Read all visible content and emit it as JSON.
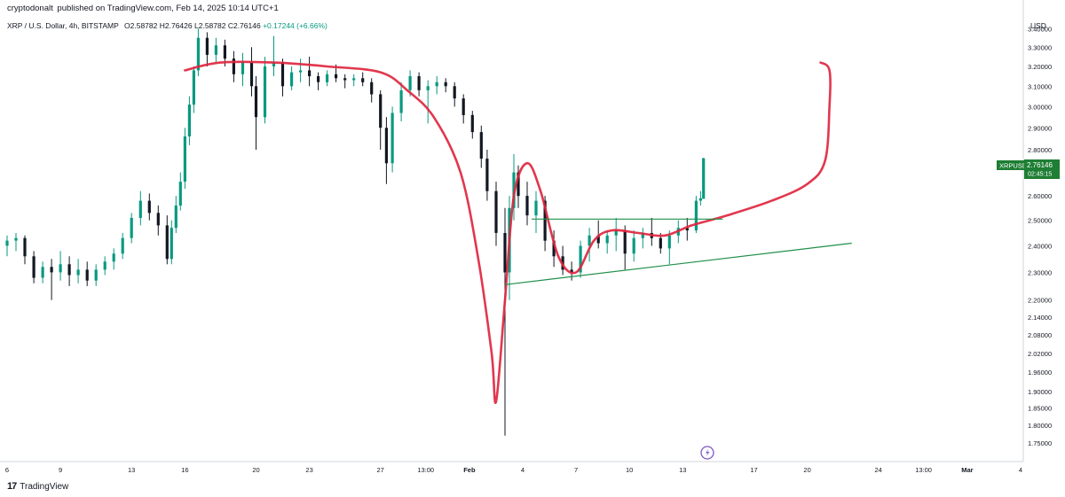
{
  "header": {
    "author": "cryptodonalt",
    "published_text": "published on TradingView.com, Feb 14, 2025 10:14 UTC+1"
  },
  "symbol": {
    "title": "XRP / U.S. Dollar, 4h, BITSTAMP",
    "open": "O2.58782",
    "high": "H2.76426",
    "low": "L2.58782",
    "close": "C2.76146",
    "change": "+0.17244 (+6.66%)"
  },
  "price_tag": {
    "ticker": "XRPUSD",
    "price": "2.76146",
    "countdown": "02:45:15"
  },
  "branding": {
    "logo_text": "TradingView",
    "logo_mark": "17"
  },
  "colors": {
    "up": "#089981",
    "down": "#131722",
    "drawing_red": "#e0263f",
    "drawing_green": "#1f8f4a",
    "price_tag_bg": "#1e7e34",
    "axis_text": "#131722",
    "border": "#d1d4dc"
  },
  "chart_data": {
    "type": "candlestick",
    "symbol": "XRPUSD",
    "interval": "4h",
    "exchange": "BITSTAMP",
    "y_axis": {
      "label": "USD",
      "scale": "log",
      "ticks": [
        "3.40000",
        "3.30000",
        "3.20000",
        "3.10000",
        "3.00000",
        "2.90000",
        "2.80000",
        "2.70000",
        "2.60000",
        "2.50000",
        "2.40000",
        "2.30000",
        "2.20000",
        "2.14000",
        "2.08000",
        "2.02000",
        "1.96000",
        "1.90000",
        "1.85000",
        "1.80000",
        "1.75000"
      ],
      "range": [
        1.72,
        3.45
      ],
      "position": "right"
    },
    "x_axis": {
      "ticks": [
        {
          "label": "6",
          "date": "2025-01-06T00:00"
        },
        {
          "label": "9",
          "date": "2025-01-09T00:00"
        },
        {
          "label": "13",
          "date": "2025-01-13T00:00"
        },
        {
          "label": "16",
          "date": "2025-01-16T00:00"
        },
        {
          "label": "20",
          "date": "2025-01-20T00:00"
        },
        {
          "label": "23",
          "date": "2025-01-23T00:00"
        },
        {
          "label": "27",
          "date": "2025-01-27T00:00"
        },
        {
          "label": "13:00",
          "date": "2025-01-29T13:00"
        },
        {
          "label": "Feb",
          "date": "2025-02-01T00:00"
        },
        {
          "label": "4",
          "date": "2025-02-04T00:00"
        },
        {
          "label": "7",
          "date": "2025-02-07T00:00"
        },
        {
          "label": "10",
          "date": "2025-02-10T00:00"
        },
        {
          "label": "13",
          "date": "2025-02-13T00:00"
        },
        {
          "label": "17",
          "date": "2025-02-17T00:00"
        },
        {
          "label": "20",
          "date": "2025-02-20T00:00"
        },
        {
          "label": "24",
          "date": "2025-02-24T00:00"
        },
        {
          "label": "13:00",
          "date": "2025-02-26T13:00"
        },
        {
          "label": "Mar",
          "date": "2025-03-01T00:00"
        },
        {
          "label": "4",
          "date": "2025-03-04T00:00"
        }
      ],
      "range": [
        "2025-01-06T00:00",
        "2025-03-04T00:00"
      ]
    },
    "candles": [
      {
        "t": "2025-01-06T00:00",
        "o": 2.4,
        "h": 2.44,
        "l": 2.36,
        "c": 2.42
      },
      {
        "t": "2025-01-06T12:00",
        "o": 2.42,
        "h": 2.45,
        "l": 2.38,
        "c": 2.43
      },
      {
        "t": "2025-01-07T00:00",
        "o": 2.43,
        "h": 2.44,
        "l": 2.33,
        "c": 2.36
      },
      {
        "t": "2025-01-07T12:00",
        "o": 2.36,
        "h": 2.38,
        "l": 2.26,
        "c": 2.28
      },
      {
        "t": "2025-01-08T00:00",
        "o": 2.28,
        "h": 2.34,
        "l": 2.26,
        "c": 2.32
      },
      {
        "t": "2025-01-08T12:00",
        "o": 2.32,
        "h": 2.35,
        "l": 2.2,
        "c": 2.3
      },
      {
        "t": "2025-01-09T00:00",
        "o": 2.3,
        "h": 2.38,
        "l": 2.27,
        "c": 2.33
      },
      {
        "t": "2025-01-09T12:00",
        "o": 2.33,
        "h": 2.36,
        "l": 2.25,
        "c": 2.29
      },
      {
        "t": "2025-01-10T00:00",
        "o": 2.29,
        "h": 2.35,
        "l": 2.26,
        "c": 2.31
      },
      {
        "t": "2025-01-10T12:00",
        "o": 2.31,
        "h": 2.34,
        "l": 2.25,
        "c": 2.27
      },
      {
        "t": "2025-01-11T00:00",
        "o": 2.27,
        "h": 2.33,
        "l": 2.25,
        "c": 2.31
      },
      {
        "t": "2025-01-11T12:00",
        "o": 2.31,
        "h": 2.36,
        "l": 2.29,
        "c": 2.34
      },
      {
        "t": "2025-01-12T00:00",
        "o": 2.34,
        "h": 2.39,
        "l": 2.31,
        "c": 2.37
      },
      {
        "t": "2025-01-12T12:00",
        "o": 2.37,
        "h": 2.45,
        "l": 2.35,
        "c": 2.43
      },
      {
        "t": "2025-01-13T00:00",
        "o": 2.43,
        "h": 2.53,
        "l": 2.41,
        "c": 2.51
      },
      {
        "t": "2025-01-13T12:00",
        "o": 2.51,
        "h": 2.62,
        "l": 2.48,
        "c": 2.58
      },
      {
        "t": "2025-01-14T00:00",
        "o": 2.58,
        "h": 2.61,
        "l": 2.5,
        "c": 2.53
      },
      {
        "t": "2025-01-14T12:00",
        "o": 2.53,
        "h": 2.56,
        "l": 2.44,
        "c": 2.48
      },
      {
        "t": "2025-01-15T00:00",
        "o": 2.48,
        "h": 2.52,
        "l": 2.33,
        "c": 2.35
      },
      {
        "t": "2025-01-15T06:00",
        "o": 2.35,
        "h": 2.5,
        "l": 2.33,
        "c": 2.47
      },
      {
        "t": "2025-01-15T12:00",
        "o": 2.47,
        "h": 2.6,
        "l": 2.45,
        "c": 2.56
      },
      {
        "t": "2025-01-15T18:00",
        "o": 2.56,
        "h": 2.7,
        "l": 2.54,
        "c": 2.66
      },
      {
        "t": "2025-01-16T00:00",
        "o": 2.66,
        "h": 2.9,
        "l": 2.63,
        "c": 2.86
      },
      {
        "t": "2025-01-16T06:00",
        "o": 2.86,
        "h": 3.05,
        "l": 2.82,
        "c": 3.01
      },
      {
        "t": "2025-01-16T12:00",
        "o": 3.01,
        "h": 3.2,
        "l": 2.97,
        "c": 3.18
      },
      {
        "t": "2025-01-16T18:00",
        "o": 3.18,
        "h": 3.4,
        "l": 3.15,
        "c": 3.35
      },
      {
        "t": "2025-01-17T06:00",
        "o": 3.35,
        "h": 3.38,
        "l": 3.2,
        "c": 3.26
      },
      {
        "t": "2025-01-17T18:00",
        "o": 3.26,
        "h": 3.35,
        "l": 3.22,
        "c": 3.31
      },
      {
        "t": "2025-01-18T06:00",
        "o": 3.31,
        "h": 3.34,
        "l": 3.2,
        "c": 3.24
      },
      {
        "t": "2025-01-18T18:00",
        "o": 3.24,
        "h": 3.28,
        "l": 3.12,
        "c": 3.16
      },
      {
        "t": "2025-01-19T06:00",
        "o": 3.16,
        "h": 3.27,
        "l": 3.1,
        "c": 3.22
      },
      {
        "t": "2025-01-19T18:00",
        "o": 3.22,
        "h": 3.3,
        "l": 3.05,
        "c": 3.1
      },
      {
        "t": "2025-01-20T00:00",
        "o": 3.1,
        "h": 3.15,
        "l": 2.8,
        "c": 2.95
      },
      {
        "t": "2025-01-20T12:00",
        "o": 2.95,
        "h": 3.25,
        "l": 2.92,
        "c": 3.2
      },
      {
        "t": "2025-01-21T00:00",
        "o": 3.2,
        "h": 3.36,
        "l": 3.15,
        "c": 3.22
      },
      {
        "t": "2025-01-21T12:00",
        "o": 3.22,
        "h": 3.24,
        "l": 3.05,
        "c": 3.1
      },
      {
        "t": "2025-01-22T00:00",
        "o": 3.1,
        "h": 3.2,
        "l": 3.08,
        "c": 3.17
      },
      {
        "t": "2025-01-22T12:00",
        "o": 3.17,
        "h": 3.24,
        "l": 3.12,
        "c": 3.18
      },
      {
        "t": "2025-01-23T00:00",
        "o": 3.18,
        "h": 3.25,
        "l": 3.1,
        "c": 3.15
      },
      {
        "t": "2025-01-23T12:00",
        "o": 3.15,
        "h": 3.17,
        "l": 3.08,
        "c": 3.12
      },
      {
        "t": "2025-01-24T00:00",
        "o": 3.12,
        "h": 3.18,
        "l": 3.1,
        "c": 3.16
      },
      {
        "t": "2025-01-24T12:00",
        "o": 3.16,
        "h": 3.21,
        "l": 3.12,
        "c": 3.14
      },
      {
        "t": "2025-01-25T00:00",
        "o": 3.14,
        "h": 3.16,
        "l": 3.09,
        "c": 3.13
      },
      {
        "t": "2025-01-25T12:00",
        "o": 3.13,
        "h": 3.16,
        "l": 3.1,
        "c": 3.14
      },
      {
        "t": "2025-01-26T00:00",
        "o": 3.14,
        "h": 3.17,
        "l": 3.1,
        "c": 3.12
      },
      {
        "t": "2025-01-26T12:00",
        "o": 3.12,
        "h": 3.14,
        "l": 3.02,
        "c": 3.06
      },
      {
        "t": "2025-01-27T00:00",
        "o": 3.06,
        "h": 3.08,
        "l": 2.8,
        "c": 2.9
      },
      {
        "t": "2025-01-27T08:00",
        "o": 2.9,
        "h": 2.95,
        "l": 2.65,
        "c": 2.74
      },
      {
        "t": "2025-01-27T16:00",
        "o": 2.74,
        "h": 3.0,
        "l": 2.7,
        "c": 2.97
      },
      {
        "t": "2025-01-28T04:00",
        "o": 2.97,
        "h": 3.12,
        "l": 2.93,
        "c": 3.08
      },
      {
        "t": "2025-01-28T16:00",
        "o": 3.08,
        "h": 3.18,
        "l": 3.05,
        "c": 3.15
      },
      {
        "t": "2025-01-29T04:00",
        "o": 3.15,
        "h": 3.17,
        "l": 3.05,
        "c": 3.08
      },
      {
        "t": "2025-01-29T16:00",
        "o": 3.08,
        "h": 3.13,
        "l": 2.92,
        "c": 3.1
      },
      {
        "t": "2025-01-30T04:00",
        "o": 3.1,
        "h": 3.15,
        "l": 3.06,
        "c": 3.12
      },
      {
        "t": "2025-01-30T16:00",
        "o": 3.12,
        "h": 3.14,
        "l": 3.07,
        "c": 3.1
      },
      {
        "t": "2025-01-31T04:00",
        "o": 3.1,
        "h": 3.12,
        "l": 3.0,
        "c": 3.04
      },
      {
        "t": "2025-01-31T16:00",
        "o": 3.04,
        "h": 3.06,
        "l": 2.92,
        "c": 2.96
      },
      {
        "t": "2025-02-01T04:00",
        "o": 2.96,
        "h": 2.98,
        "l": 2.85,
        "c": 2.88
      },
      {
        "t": "2025-02-01T16:00",
        "o": 2.88,
        "h": 2.91,
        "l": 2.72,
        "c": 2.76
      },
      {
        "t": "2025-02-02T00:00",
        "o": 2.76,
        "h": 2.8,
        "l": 2.58,
        "c": 2.62
      },
      {
        "t": "2025-02-02T12:00",
        "o": 2.62,
        "h": 2.66,
        "l": 2.4,
        "c": 2.45
      },
      {
        "t": "2025-02-03T00:00",
        "o": 2.45,
        "h": 2.55,
        "l": 1.77,
        "c": 2.3
      },
      {
        "t": "2025-02-03T06:00",
        "o": 2.3,
        "h": 2.6,
        "l": 2.2,
        "c": 2.55
      },
      {
        "t": "2025-02-03T12:00",
        "o": 2.55,
        "h": 2.78,
        "l": 2.5,
        "c": 2.7
      },
      {
        "t": "2025-02-03T18:00",
        "o": 2.7,
        "h": 2.73,
        "l": 2.55,
        "c": 2.6
      },
      {
        "t": "2025-02-04T06:00",
        "o": 2.6,
        "h": 2.66,
        "l": 2.48,
        "c": 2.52
      },
      {
        "t": "2025-02-04T18:00",
        "o": 2.52,
        "h": 2.62,
        "l": 2.45,
        "c": 2.58
      },
      {
        "t": "2025-02-05T06:00",
        "o": 2.58,
        "h": 2.6,
        "l": 2.38,
        "c": 2.42
      },
      {
        "t": "2025-02-05T18:00",
        "o": 2.42,
        "h": 2.46,
        "l": 2.32,
        "c": 2.36
      },
      {
        "t": "2025-02-06T06:00",
        "o": 2.36,
        "h": 2.4,
        "l": 2.29,
        "c": 2.31
      },
      {
        "t": "2025-02-06T18:00",
        "o": 2.31,
        "h": 2.34,
        "l": 2.27,
        "c": 2.3
      },
      {
        "t": "2025-02-07T06:00",
        "o": 2.3,
        "h": 2.42,
        "l": 2.28,
        "c": 2.4
      },
      {
        "t": "2025-02-07T18:00",
        "o": 2.4,
        "h": 2.47,
        "l": 2.34,
        "c": 2.44
      },
      {
        "t": "2025-02-08T06:00",
        "o": 2.44,
        "h": 2.5,
        "l": 2.39,
        "c": 2.41
      },
      {
        "t": "2025-02-08T18:00",
        "o": 2.41,
        "h": 2.46,
        "l": 2.37,
        "c": 2.44
      },
      {
        "t": "2025-02-09T06:00",
        "o": 2.44,
        "h": 2.51,
        "l": 2.38,
        "c": 2.46
      },
      {
        "t": "2025-02-09T18:00",
        "o": 2.46,
        "h": 2.48,
        "l": 2.31,
        "c": 2.37
      },
      {
        "t": "2025-02-10T06:00",
        "o": 2.37,
        "h": 2.46,
        "l": 2.34,
        "c": 2.43
      },
      {
        "t": "2025-02-10T18:00",
        "o": 2.43,
        "h": 2.47,
        "l": 2.39,
        "c": 2.45
      },
      {
        "t": "2025-02-11T06:00",
        "o": 2.45,
        "h": 2.51,
        "l": 2.4,
        "c": 2.43
      },
      {
        "t": "2025-02-11T18:00",
        "o": 2.43,
        "h": 2.45,
        "l": 2.37,
        "c": 2.39
      },
      {
        "t": "2025-02-12T06:00",
        "o": 2.39,
        "h": 2.46,
        "l": 2.33,
        "c": 2.44
      },
      {
        "t": "2025-02-12T18:00",
        "o": 2.44,
        "h": 2.5,
        "l": 2.41,
        "c": 2.47
      },
      {
        "t": "2025-02-13T06:00",
        "o": 2.47,
        "h": 2.51,
        "l": 2.42,
        "c": 2.46
      },
      {
        "t": "2025-02-13T18:00",
        "o": 2.46,
        "h": 2.6,
        "l": 2.45,
        "c": 2.58
      },
      {
        "t": "2025-02-14T00:00",
        "o": 2.58,
        "h": 2.62,
        "l": 2.56,
        "c": 2.59
      },
      {
        "t": "2025-02-14T04:00",
        "o": 2.58782,
        "h": 2.76426,
        "l": 2.58782,
        "c": 2.76146
      }
    ],
    "drawings": {
      "red_path": [
        [
          "2025-01-16T00:00",
          3.18
        ],
        [
          "2025-01-18T00:00",
          3.22
        ],
        [
          "2025-01-21T00:00",
          3.22
        ],
        [
          "2025-01-24T00:00",
          3.2
        ],
        [
          "2025-01-27T00:00",
          3.17
        ],
        [
          "2025-01-28T12:00",
          3.08
        ],
        [
          "2025-01-30T00:00",
          2.95
        ],
        [
          "2025-01-31T12:00",
          2.7
        ],
        [
          "2025-02-01T12:00",
          2.35
        ],
        [
          "2025-02-02T06:00",
          2.02
        ],
        [
          "2025-02-02T12:00",
          1.87
        ],
        [
          "2025-02-03T00:00",
          2.2
        ],
        [
          "2025-02-03T12:00",
          2.6
        ],
        [
          "2025-02-04T06:00",
          2.74
        ],
        [
          "2025-02-05T00:00",
          2.62
        ],
        [
          "2025-02-06T00:00",
          2.36
        ],
        [
          "2025-02-07T00:00",
          2.3
        ],
        [
          "2025-02-08T00:00",
          2.42
        ],
        [
          "2025-02-09T00:00",
          2.46
        ],
        [
          "2025-02-10T12:00",
          2.45
        ],
        [
          "2025-02-12T00:00",
          2.44
        ],
        [
          "2025-02-13T12:00",
          2.48
        ],
        [
          "2025-02-15T12:00",
          2.52
        ],
        [
          "2025-02-18T00:00",
          2.58
        ],
        [
          "2025-02-20T00:00",
          2.65
        ],
        [
          "2025-02-21T00:00",
          2.75
        ],
        [
          "2025-02-21T06:00",
          3.0
        ],
        [
          "2025-02-21T06:00",
          3.18
        ],
        [
          "2025-02-20T18:00",
          3.22
        ]
      ],
      "green_resistance": [
        [
          "2025-02-04T12:00",
          2.505
        ],
        [
          "2025-02-15T06:00",
          2.505
        ]
      ],
      "green_support": [
        [
          "2025-02-03T00:00",
          2.255
        ],
        [
          "2025-02-22T12:00",
          2.41
        ]
      ]
    }
  }
}
